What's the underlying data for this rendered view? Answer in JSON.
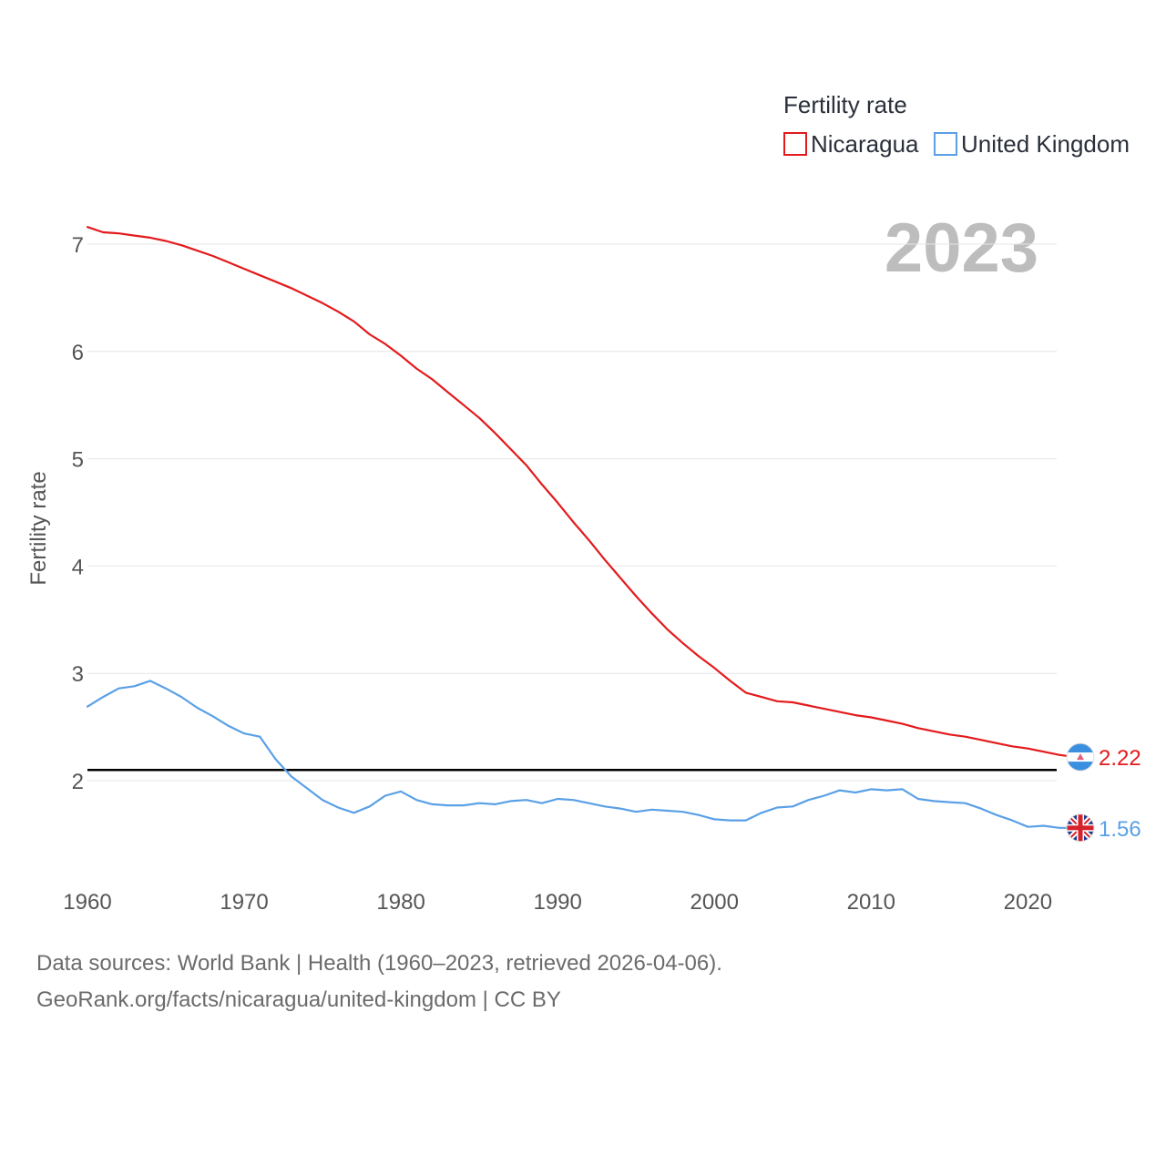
{
  "chart_data": {
    "type": "line",
    "title": "Fertility rate",
    "year_label": "2023",
    "ylabel": "Fertility rate",
    "xlabel": "",
    "xlim": [
      1960,
      2023
    ],
    "ylim": [
      1.2,
      7.3
    ],
    "x_ticks": [
      1960,
      1970,
      1980,
      1990,
      2000,
      2010,
      2020
    ],
    "y_ticks": [
      2,
      3,
      4,
      5,
      6,
      7
    ],
    "reference_line": {
      "y": 2.1,
      "color": "#000000"
    },
    "grid": true,
    "legend_position": "top-right",
    "x": [
      1960,
      1961,
      1962,
      1963,
      1964,
      1965,
      1966,
      1967,
      1968,
      1969,
      1970,
      1971,
      1972,
      1973,
      1974,
      1975,
      1976,
      1977,
      1978,
      1979,
      1980,
      1981,
      1982,
      1983,
      1984,
      1985,
      1986,
      1987,
      1988,
      1989,
      1990,
      1991,
      1992,
      1993,
      1994,
      1995,
      1996,
      1997,
      1998,
      1999,
      2000,
      2001,
      2002,
      2003,
      2004,
      2005,
      2006,
      2007,
      2008,
      2009,
      2010,
      2011,
      2012,
      2013,
      2014,
      2015,
      2016,
      2017,
      2018,
      2019,
      2020,
      2021,
      2022,
      2023
    ],
    "series": [
      {
        "name": "Nicaragua",
        "color": "#e41a1c",
        "end_label": "2.22",
        "flag_icon": "nicaragua-flag-icon",
        "values": [
          7.16,
          7.11,
          7.1,
          7.08,
          7.06,
          7.03,
          6.99,
          6.94,
          6.89,
          6.83,
          6.77,
          6.71,
          6.65,
          6.59,
          6.52,
          6.45,
          6.37,
          6.28,
          6.16,
          6.07,
          5.96,
          5.84,
          5.74,
          5.62,
          5.5,
          5.38,
          5.24,
          5.09,
          4.94,
          4.76,
          4.59,
          4.41,
          4.24,
          4.06,
          3.89,
          3.72,
          3.56,
          3.41,
          3.28,
          3.16,
          3.05,
          2.93,
          2.82,
          2.78,
          2.74,
          2.73,
          2.7,
          2.67,
          2.64,
          2.61,
          2.59,
          2.56,
          2.53,
          2.49,
          2.46,
          2.43,
          2.41,
          2.38,
          2.35,
          2.32,
          2.3,
          2.27,
          2.24,
          2.22
        ]
      },
      {
        "name": "United Kingdom",
        "color": "#5aa0e6",
        "end_label": "1.56",
        "flag_icon": "united-kingdom-flag-icon",
        "values": [
          2.69,
          2.78,
          2.86,
          2.88,
          2.93,
          2.86,
          2.78,
          2.68,
          2.6,
          2.51,
          2.44,
          2.41,
          2.2,
          2.04,
          1.93,
          1.82,
          1.75,
          1.7,
          1.76,
          1.86,
          1.9,
          1.82,
          1.78,
          1.77,
          1.77,
          1.79,
          1.78,
          1.81,
          1.82,
          1.79,
          1.83,
          1.82,
          1.79,
          1.76,
          1.74,
          1.71,
          1.73,
          1.72,
          1.71,
          1.68,
          1.64,
          1.63,
          1.63,
          1.7,
          1.75,
          1.76,
          1.82,
          1.86,
          1.91,
          1.89,
          1.92,
          1.91,
          1.92,
          1.83,
          1.81,
          1.8,
          1.79,
          1.74,
          1.68,
          1.63,
          1.57,
          1.58,
          1.56,
          1.56
        ]
      }
    ]
  },
  "footer": {
    "line1": "Data sources: World Bank | Health (1960–2023, retrieved 2026-04-06).",
    "line2": "GeoRank.org/facts/nicaragua/united-kingdom | CC BY"
  }
}
